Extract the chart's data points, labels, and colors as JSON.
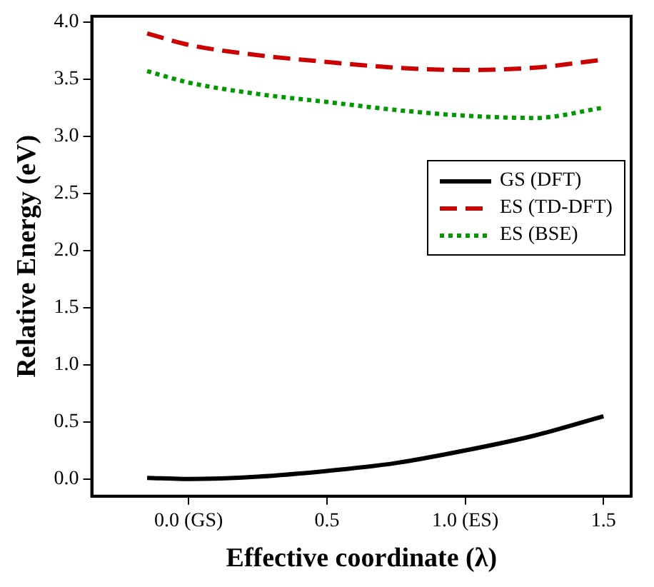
{
  "chart_data": {
    "type": "line",
    "xlabel": "Effective coordinate (λ)",
    "ylabel": "Relative Energy (eV)",
    "xlim": [
      -0.35,
      1.6
    ],
    "ylim": [
      -0.15,
      4.05
    ],
    "xticks": [
      {
        "value": 0,
        "label": "0.0 (GS)"
      },
      {
        "value": 0.5,
        "label": "0.5"
      },
      {
        "value": 1,
        "label": "1.0 (ES)"
      },
      {
        "value": 1.5,
        "label": "1.5"
      }
    ],
    "yticks": [
      {
        "value": 0,
        "label": "0.0"
      },
      {
        "value": 0.5,
        "label": "0.5"
      },
      {
        "value": 1,
        "label": "1.0"
      },
      {
        "value": 1.5,
        "label": "1.5"
      },
      {
        "value": 2,
        "label": "2.0"
      },
      {
        "value": 2.5,
        "label": "2.5"
      },
      {
        "value": 3,
        "label": "3.0"
      },
      {
        "value": 3.5,
        "label": "3.5"
      },
      {
        "value": 4,
        "label": "4.0"
      }
    ],
    "x": [
      -0.15,
      0,
      0.25,
      0.5,
      0.75,
      1,
      1.25,
      1.5
    ],
    "series": [
      {
        "name": "GS (DFT)",
        "color": "#000000",
        "line_style": "solid",
        "values": [
          0.01,
          0,
          0.02,
          0.07,
          0.14,
          0.25,
          0.38,
          0.55
        ]
      },
      {
        "name": "ES (TD-DFT)",
        "color": "#cc0000",
        "line_style": "dashed",
        "values": [
          3.9,
          3.8,
          3.71,
          3.65,
          3.6,
          3.58,
          3.6,
          3.67
        ]
      },
      {
        "name": "ES (BSE)",
        "color": "#009900",
        "line_style": "dotted",
        "values": [
          3.57,
          3.47,
          3.37,
          3.3,
          3.23,
          3.18,
          3.16,
          3.25
        ]
      }
    ],
    "legend": "right",
    "marker": "none",
    "grid": false
  }
}
